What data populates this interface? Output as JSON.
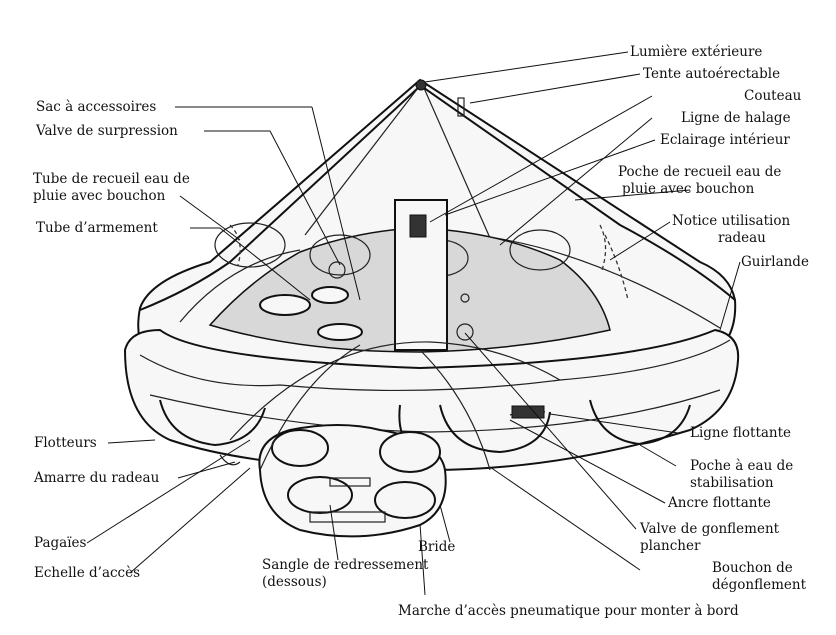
{
  "diagram": {
    "labels": {
      "lumiere_exterieure": "Lumière extérieure",
      "tente_autoerectable": "Tente autoérectable",
      "couteau": "Couteau",
      "ligne_de_halage": "Ligne de halage",
      "eclairage_interieur": "Eclairage intérieur",
      "poche_recueil_1": "Poche de recueil eau de",
      "poche_recueil_2": "pluie avec bouchon",
      "notice_1": "Notice utilisation",
      "notice_2": "radeau",
      "guirlande": "Guirlande",
      "sac_accessoires": "Sac à accessoires",
      "valve_surpression": "Valve de surpression",
      "tube_recueil_1": "Tube de recueil eau de",
      "tube_recueil_2": "pluie avec bouchon",
      "tube_armement": "Tube d’armement",
      "flotteurs": "Flotteurs",
      "amarre": "Amarre du radeau",
      "pagaies": "Pagaïes",
      "echelle": "Echelle d’accès",
      "sangle_1": "Sangle de redressement",
      "sangle_2": "(dessous)",
      "bride": "Bride",
      "ligne_flottante": "Ligne flottante",
      "poche_eau_1": "Poche à eau de",
      "poche_eau_2": "stabilisation",
      "ancre": "Ancre flottante",
      "valve_gonflement_1": "Valve de gonflement",
      "valve_gonflement_2": "plancher",
      "bouchon_1": "Bouchon de",
      "bouchon_2": "dégonflement",
      "marche": "Marche d’accès pneumatique pour monter à bord"
    }
  }
}
